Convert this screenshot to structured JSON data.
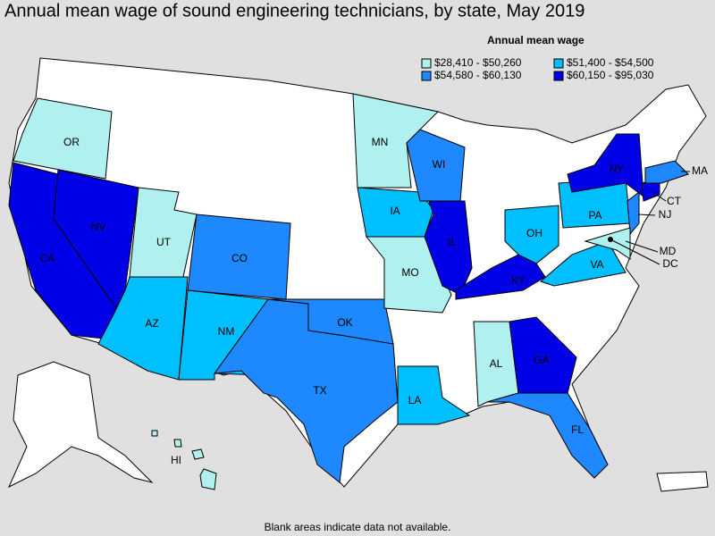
{
  "map": {
    "title": "Annual mean wage of sound engineering technicians, by state, May 2019",
    "legend_title": "Annual mean wage",
    "legend": [
      {
        "label": "$28,410 - $50,260",
        "color": "#b0f0ee"
      },
      {
        "label": "$51,400 - $54,500",
        "color": "#00bfff"
      },
      {
        "label": "$54,580 - $60,130",
        "color": "#1e88ff"
      },
      {
        "label": "$60,150 - $95,030",
        "color": "#0000e6"
      }
    ],
    "states": [
      {
        "label": "OR",
        "class": 0
      },
      {
        "label": "CA",
        "class": 3
      },
      {
        "label": "NV",
        "class": 3
      },
      {
        "label": "UT",
        "class": 0
      },
      {
        "label": "AZ",
        "class": 1
      },
      {
        "label": "CO",
        "class": 2
      },
      {
        "label": "NM",
        "class": 1
      },
      {
        "label": "TX",
        "class": 2
      },
      {
        "label": "OK",
        "class": 2
      },
      {
        "label": "MN",
        "class": 0
      },
      {
        "label": "IA",
        "class": 1
      },
      {
        "label": "MO",
        "class": 0
      },
      {
        "label": "WI",
        "class": 2
      },
      {
        "label": "IL",
        "class": 3
      },
      {
        "label": "LA",
        "class": 1
      },
      {
        "label": "AL",
        "class": 0
      },
      {
        "label": "GA",
        "class": 3
      },
      {
        "label": "FL",
        "class": 2
      },
      {
        "label": "KY",
        "class": 3
      },
      {
        "label": "OH",
        "class": 1
      },
      {
        "label": "VA",
        "class": 1
      },
      {
        "label": "PA",
        "class": 1
      },
      {
        "label": "NJ",
        "class": 2
      },
      {
        "label": "NY",
        "class": 3
      },
      {
        "label": "CT",
        "class": 3
      },
      {
        "label": "MA",
        "class": 2
      },
      {
        "label": "MD",
        "class": 0
      },
      {
        "label": "DC",
        "class": 3
      },
      {
        "label": "HI",
        "class": 0
      }
    ],
    "footnote": "Blank areas indicate data not available."
  }
}
